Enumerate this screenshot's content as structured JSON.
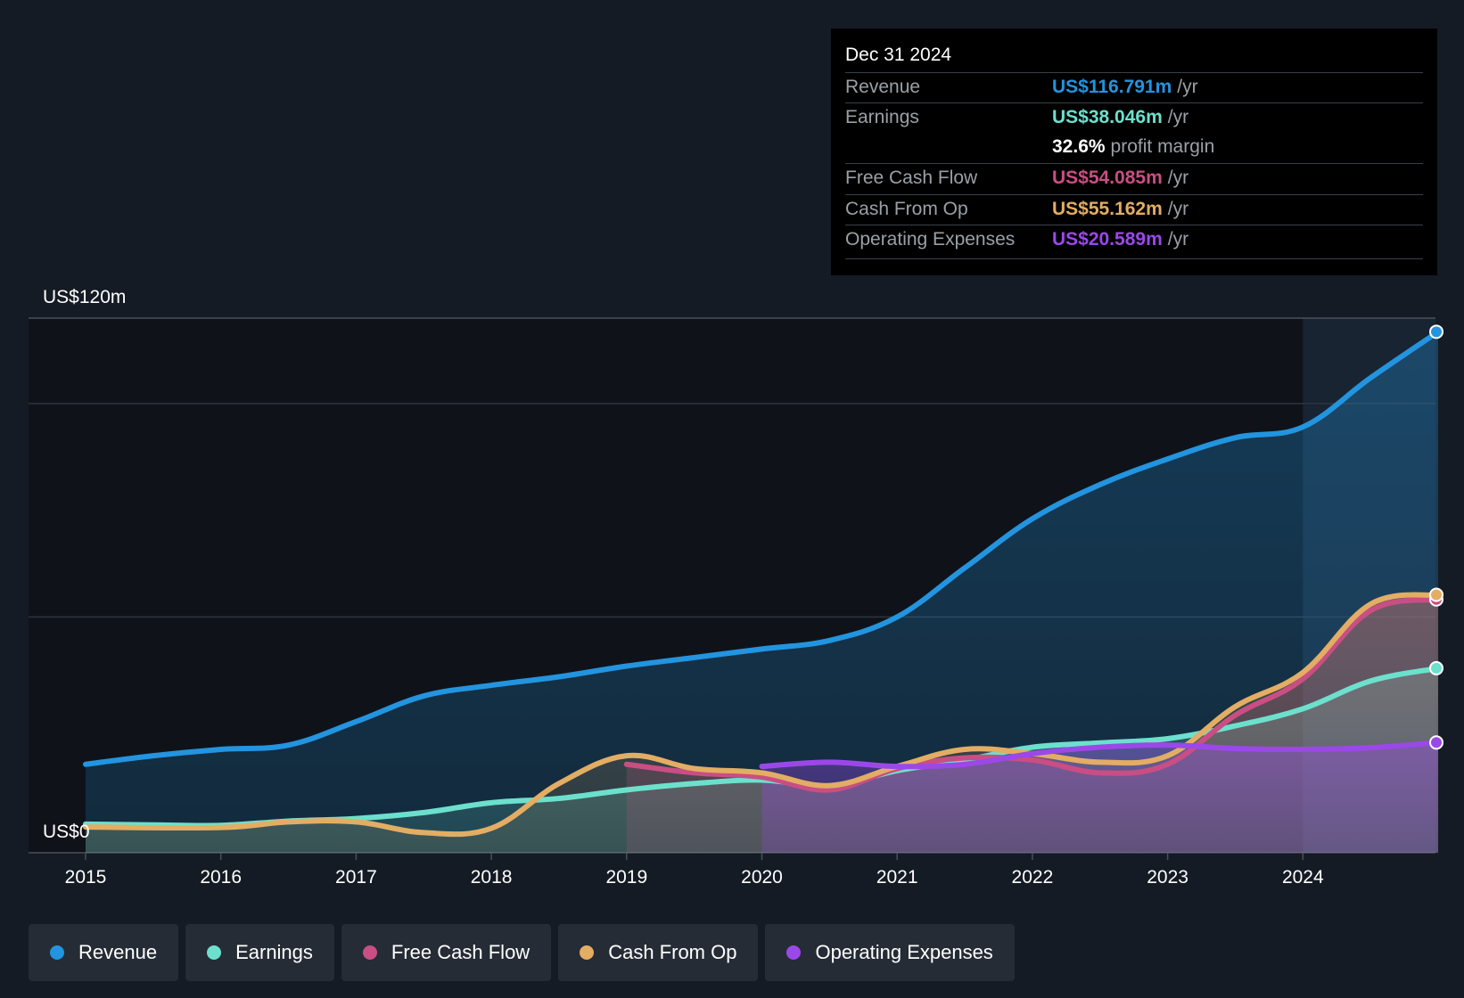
{
  "chart_data": {
    "type": "area",
    "ylabel_top": "US$120m",
    "ylabel_bottom": "US$0",
    "ylim": [
      -3,
      120
    ],
    "xlim": [
      2015,
      2025
    ],
    "x_ticks": [
      "2015",
      "2016",
      "2017",
      "2018",
      "2019",
      "2020",
      "2021",
      "2022",
      "2023",
      "2024"
    ],
    "series": [
      {
        "name": "Revenue",
        "color": "#2394df",
        "start": 2015,
        "points": [
          [
            2015,
            15.5
          ],
          [
            2015.5,
            17.5
          ],
          [
            2016,
            19.0
          ],
          [
            2016.5,
            20.0
          ],
          [
            2017,
            25.5
          ],
          [
            2017.5,
            31.5
          ],
          [
            2018,
            34.0
          ],
          [
            2018.5,
            36.0
          ],
          [
            2019,
            38.5
          ],
          [
            2019.5,
            40.5
          ],
          [
            2020,
            42.5
          ],
          [
            2020.5,
            44.5
          ],
          [
            2021,
            50.0
          ],
          [
            2021.5,
            61.5
          ],
          [
            2022,
            73.0
          ],
          [
            2022.5,
            81.0
          ],
          [
            2023,
            87.0
          ],
          [
            2023.5,
            92.0
          ],
          [
            2024,
            94.5
          ],
          [
            2024.5,
            106.0
          ],
          [
            2025,
            116.8
          ]
        ]
      },
      {
        "name": "Earnings",
        "color": "#6ce0cd",
        "start": 2015,
        "points": [
          [
            2015,
            1.5
          ],
          [
            2015.5,
            1.3
          ],
          [
            2016,
            1.2
          ],
          [
            2016.5,
            2.2
          ],
          [
            2017,
            2.8
          ],
          [
            2017.5,
            4.2
          ],
          [
            2018,
            6.5
          ],
          [
            2018.5,
            7.5
          ],
          [
            2019,
            9.5
          ],
          [
            2019.5,
            11.0
          ],
          [
            2020,
            11.8
          ],
          [
            2020.5,
            10.5
          ],
          [
            2021,
            14.0
          ],
          [
            2021.5,
            16.5
          ],
          [
            2022,
            19.5
          ],
          [
            2022.5,
            20.5
          ],
          [
            2023,
            21.5
          ],
          [
            2023.5,
            24.5
          ],
          [
            2024,
            28.5
          ],
          [
            2024.5,
            35.0
          ],
          [
            2025,
            38.0
          ]
        ]
      },
      {
        "name": "Free Cash Flow",
        "color": "#c94e83",
        "start": 2019,
        "points": [
          [
            2019,
            15.5
          ],
          [
            2019.5,
            13.5
          ],
          [
            2020,
            12.5
          ],
          [
            2020.5,
            9.5
          ],
          [
            2021,
            14.5
          ],
          [
            2021.5,
            17.0
          ],
          [
            2022,
            16.5
          ],
          [
            2022.5,
            13.5
          ],
          [
            2023,
            15.5
          ],
          [
            2023.5,
            27.0
          ],
          [
            2024,
            35.5
          ],
          [
            2024.5,
            51.5
          ],
          [
            2025,
            54.1
          ]
        ]
      },
      {
        "name": "Cash From Op",
        "color": "#e3ad63",
        "start": 2015,
        "points": [
          [
            2015,
            0.8
          ],
          [
            2016,
            0.7
          ],
          [
            2016.5,
            2.0
          ],
          [
            2017,
            2.0
          ],
          [
            2017.5,
            -0.5
          ],
          [
            2018,
            0.5
          ],
          [
            2018.5,
            11.0
          ],
          [
            2019,
            17.5
          ],
          [
            2019.5,
            14.5
          ],
          [
            2020,
            13.5
          ],
          [
            2020.5,
            10.5
          ],
          [
            2021,
            15.0
          ],
          [
            2021.5,
            19.0
          ],
          [
            2022,
            18.0
          ],
          [
            2022.5,
            16.0
          ],
          [
            2023,
            17.5
          ],
          [
            2023.5,
            29.0
          ],
          [
            2024,
            37.0
          ],
          [
            2024.5,
            53.0
          ],
          [
            2025,
            55.2
          ]
        ]
      },
      {
        "name": "Operating Expenses",
        "color": "#9b48e8",
        "start": 2020,
        "points": [
          [
            2020,
            15.0
          ],
          [
            2020.5,
            16.0
          ],
          [
            2021,
            15.0
          ],
          [
            2021.5,
            15.5
          ],
          [
            2022,
            18.0
          ],
          [
            2022.5,
            19.5
          ],
          [
            2023,
            20.0
          ],
          [
            2023.5,
            19.2
          ],
          [
            2024,
            19.0
          ],
          [
            2024.5,
            19.4
          ],
          [
            2025,
            20.6
          ]
        ]
      }
    ]
  },
  "tooltip": {
    "date": "Dec 31 2024",
    "rows": [
      {
        "label": "Revenue",
        "value": "US$116.791m",
        "unit": "/yr",
        "color": "#2394df"
      },
      {
        "label": "Earnings",
        "value": "US$38.046m",
        "unit": "/yr",
        "color": "#6ce0cd"
      },
      {
        "label": "",
        "value": "32.6%",
        "unit": "profit margin",
        "color": "#ffffff"
      },
      {
        "label": "Free Cash Flow",
        "value": "US$54.085m",
        "unit": "/yr",
        "color": "#c94e83"
      },
      {
        "label": "Cash From Op",
        "value": "US$55.162m",
        "unit": "/yr",
        "color": "#e3ad63"
      },
      {
        "label": "Operating Expenses",
        "value": "US$20.589m",
        "unit": "/yr",
        "color": "#9b48e8"
      }
    ]
  },
  "legend": [
    {
      "label": "Revenue",
      "color": "#2394df"
    },
    {
      "label": "Earnings",
      "color": "#6ce0cd"
    },
    {
      "label": "Free Cash Flow",
      "color": "#c94e83"
    },
    {
      "label": "Cash From Op",
      "color": "#e3ad63"
    },
    {
      "label": "Operating Expenses",
      "color": "#9b48e8"
    }
  ]
}
